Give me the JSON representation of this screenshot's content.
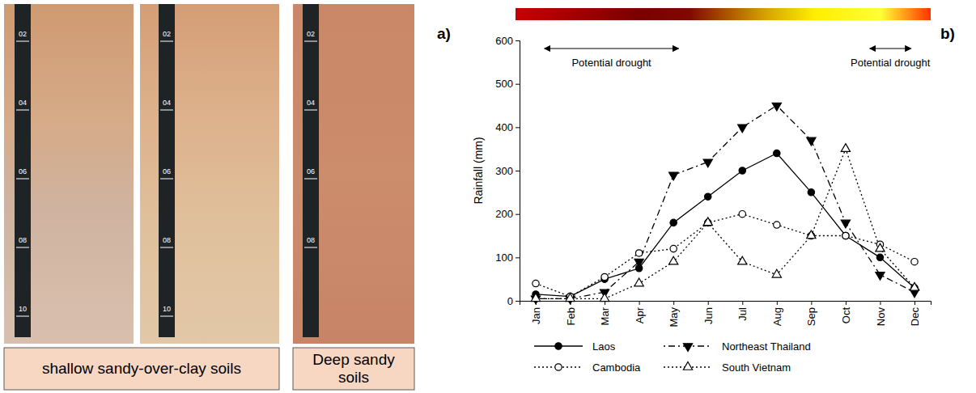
{
  "chart_data": {
    "type": "line",
    "y_label": "Rainfall (mm)",
    "categories": [
      "Jan",
      "Feb",
      "Mar",
      "Apr",
      "May",
      "Jun",
      "Jul",
      "Aug",
      "Sep",
      "Oct",
      "Nov",
      "Dec"
    ],
    "series": [
      {
        "name": "Laos",
        "color": "#000000",
        "marker": "circle",
        "line_style": "solid",
        "values": [
          15,
          10,
          50,
          75,
          180,
          240,
          300,
          340,
          250,
          150,
          100,
          30
        ]
      },
      {
        "name": "Northeast Thailand",
        "color": "#000000",
        "marker": "triangle-down",
        "line_style": "dashdot",
        "values": [
          5,
          5,
          20,
          90,
          290,
          320,
          400,
          450,
          370,
          180,
          60,
          20
        ]
      },
      {
        "name": "Cambodia",
        "color": "#000000",
        "marker": "circle-open",
        "line_style": "dotted",
        "values": [
          40,
          10,
          55,
          110,
          120,
          180,
          200,
          175,
          150,
          150,
          130,
          90
        ]
      },
      {
        "name": "South Vietnam",
        "color": "#000000",
        "marker": "triangle-open",
        "line_style": "dotted",
        "values": [
          5,
          5,
          5,
          40,
          90,
          180,
          90,
          60,
          150,
          350,
          120,
          30
        ]
      }
    ],
    "ylim": [
      0,
      600
    ],
    "yticks": [
      0,
      100,
      200,
      300,
      400,
      500,
      600
    ],
    "grid": false,
    "legend": "bottom",
    "annotations": [
      {
        "text": "Potential drought",
        "from": "Jan",
        "to": "May"
      },
      {
        "text": "Potential drought",
        "from": "Nov",
        "to": "Dec"
      }
    ]
  },
  "panel_labels": [
    "a)",
    "b)"
  ],
  "photos": {
    "panels": [
      {
        "tape": [
          "02",
          "04",
          "06",
          "08",
          "10"
        ]
      },
      {
        "tape": [
          "02",
          "04",
          "06",
          "08",
          "10"
        ]
      },
      {
        "tape": [
          "02",
          "04",
          "06",
          "08"
        ]
      }
    ],
    "captions": [
      "shallow sandy-over-clay soils",
      "Deep sandy soils"
    ]
  }
}
